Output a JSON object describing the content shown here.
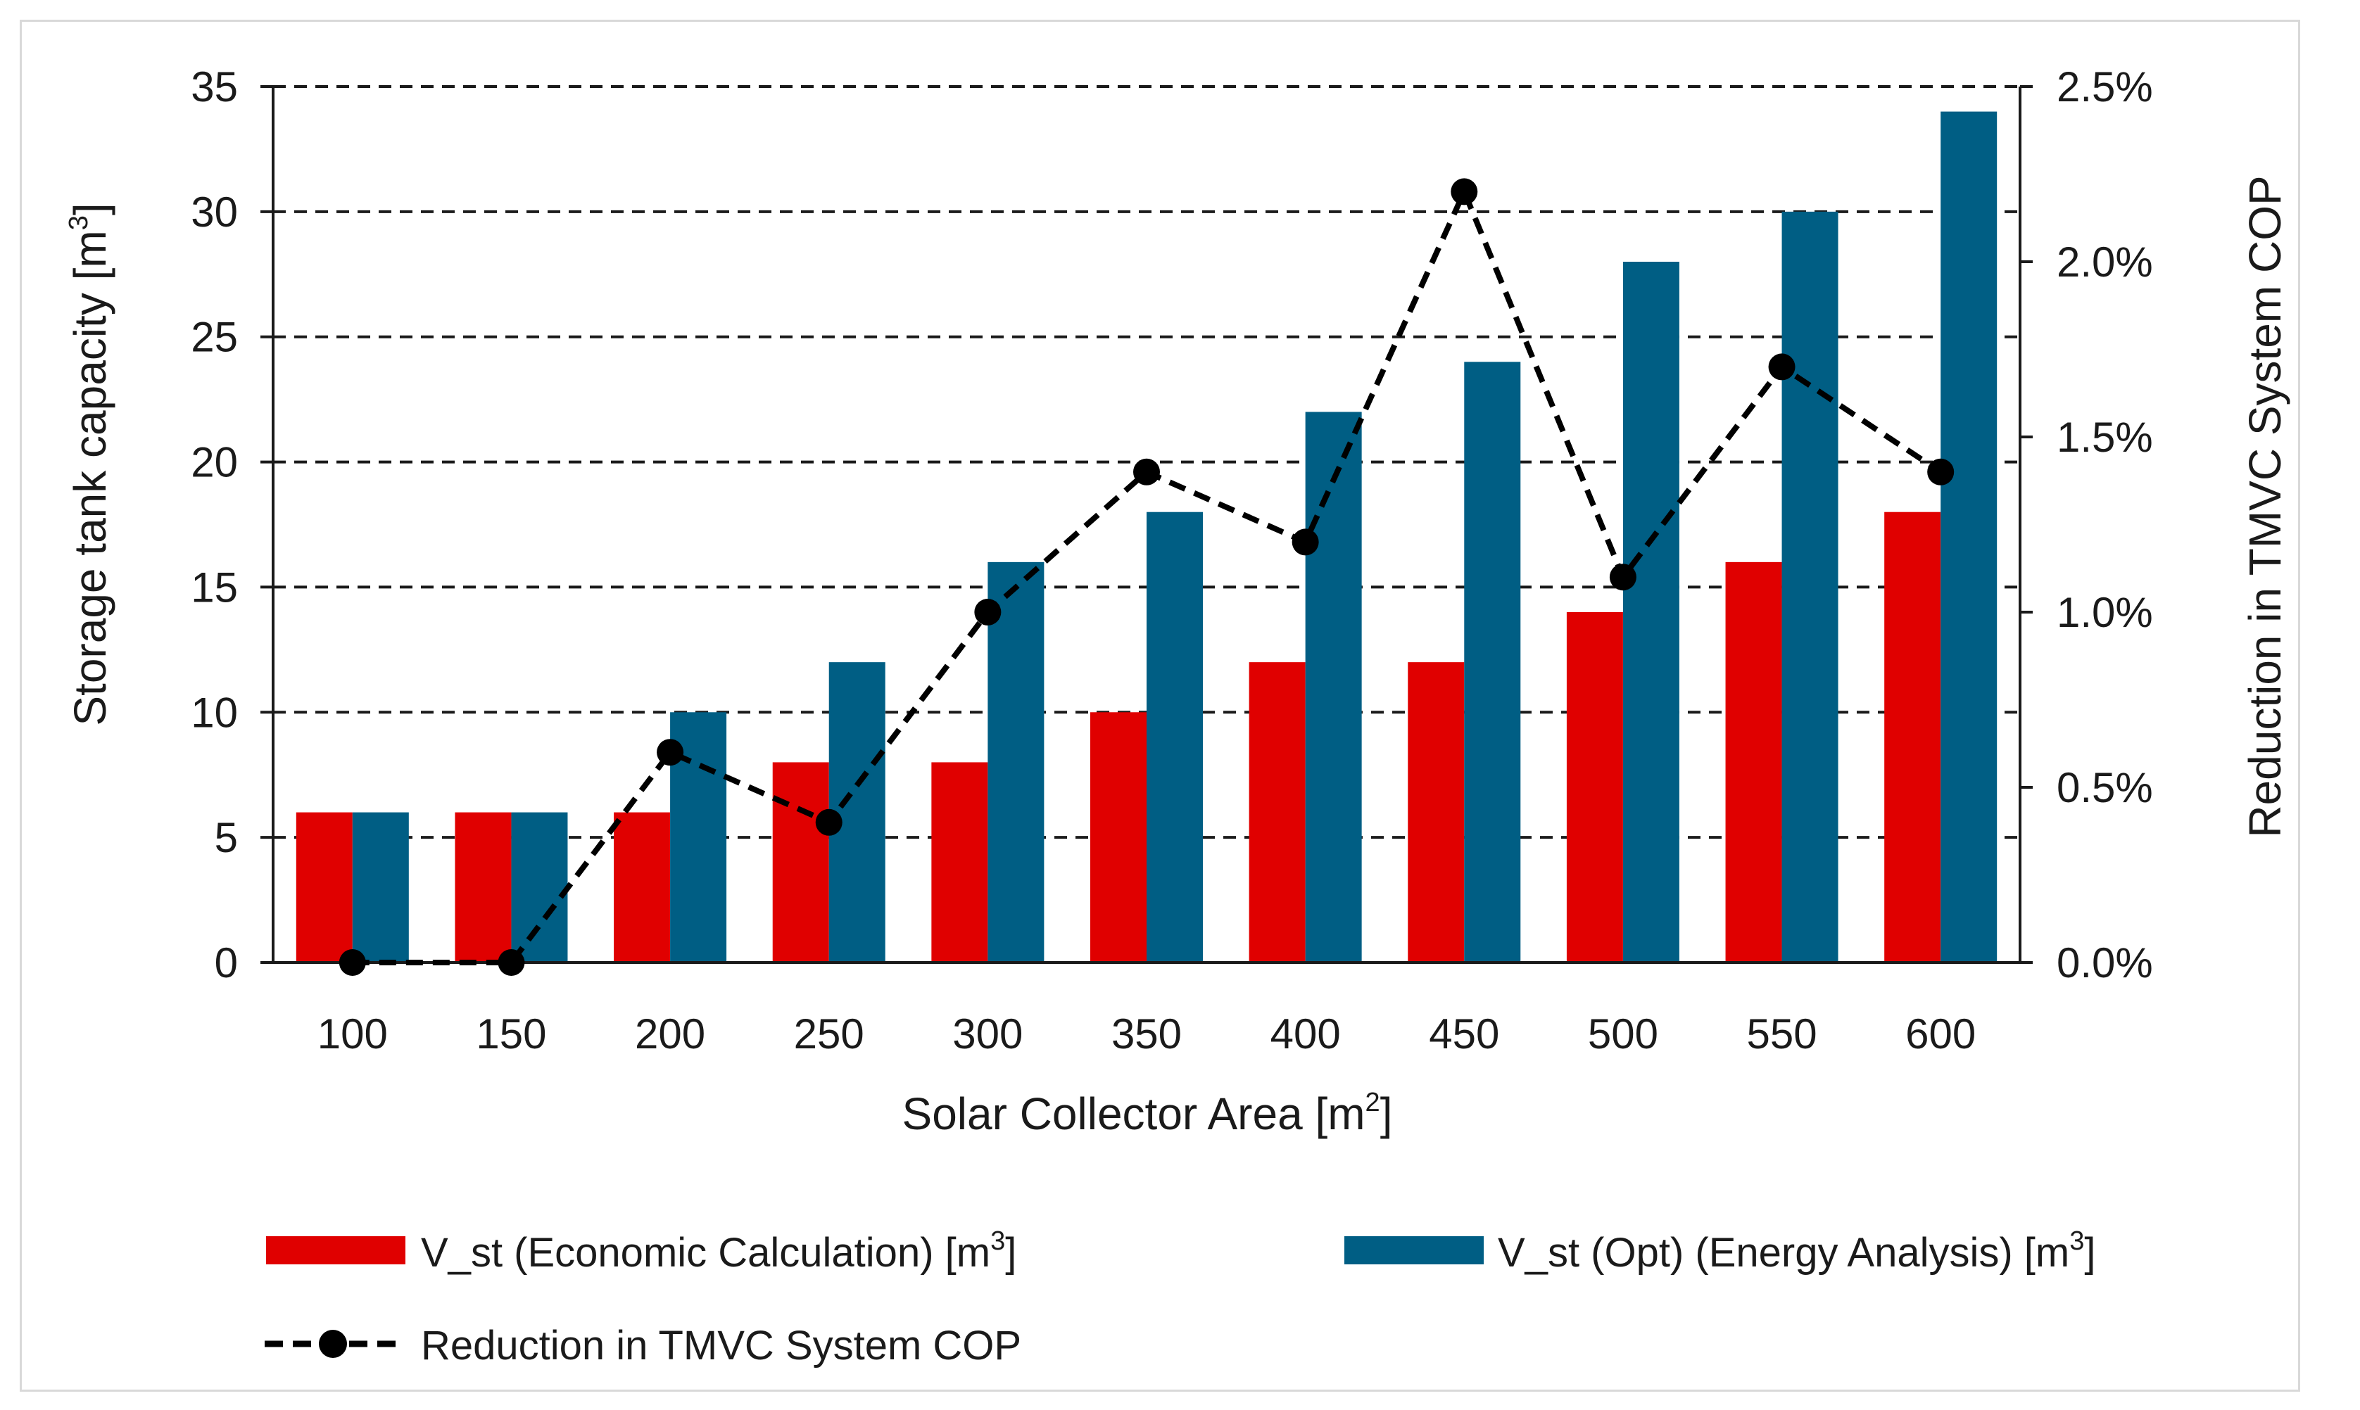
{
  "chart_data": {
    "type": "bar",
    "categories": [
      "100",
      "150",
      "200",
      "250",
      "300",
      "350",
      "400",
      "450",
      "500",
      "550",
      "600"
    ],
    "series": [
      {
        "name": "V_st (Economic Calculation) [m³]",
        "kind": "bar",
        "axis": "left",
        "color": "#e00000",
        "values": [
          6,
          6,
          6,
          8,
          8,
          10,
          12,
          12,
          14,
          16,
          18
        ]
      },
      {
        "name": "V_st (Opt) (Energy Analysis) [m³]",
        "kind": "bar",
        "axis": "left",
        "color": "#005e84",
        "values": [
          6,
          6,
          10,
          12,
          16,
          18,
          22,
          24,
          28,
          30,
          34
        ]
      },
      {
        "name": "Reduction in TMVC System COP",
        "kind": "line",
        "axis": "right",
        "color": "#000000",
        "values": [
          0.0,
          0.0,
          0.6,
          0.4,
          1.0,
          1.4,
          1.2,
          2.2,
          1.1,
          1.7,
          1.4
        ]
      }
    ],
    "xlabel": "Solar Collector Area [m",
    "xlabel_sup": "2",
    "xlabel_end": "]",
    "ylabel": "Storage tank capacity [m",
    "ylabel_sup": "3",
    "ylabel_end": "]",
    "y2label": "Reduction in TMVC System COP",
    "ylim": [
      0,
      35
    ],
    "yticks": [
      "0",
      "5",
      "10",
      "15",
      "20",
      "25",
      "30",
      "35"
    ],
    "y2lim": [
      0,
      2.5
    ],
    "y2ticks": [
      "0.0%",
      "0.5%",
      "1.0%",
      "1.5%",
      "2.0%",
      "2.5%"
    ],
    "grid": "horizontal dashed",
    "legend": [
      {
        "label": "V_st (Economic Calculation) [m",
        "sup": "3",
        "end": "]"
      },
      {
        "label": "V_st (Opt) (Energy Analysis) [m",
        "sup": "3",
        "end": "]"
      },
      {
        "label": "Reduction in TMVC System COP",
        "sup": "",
        "end": ""
      }
    ]
  }
}
